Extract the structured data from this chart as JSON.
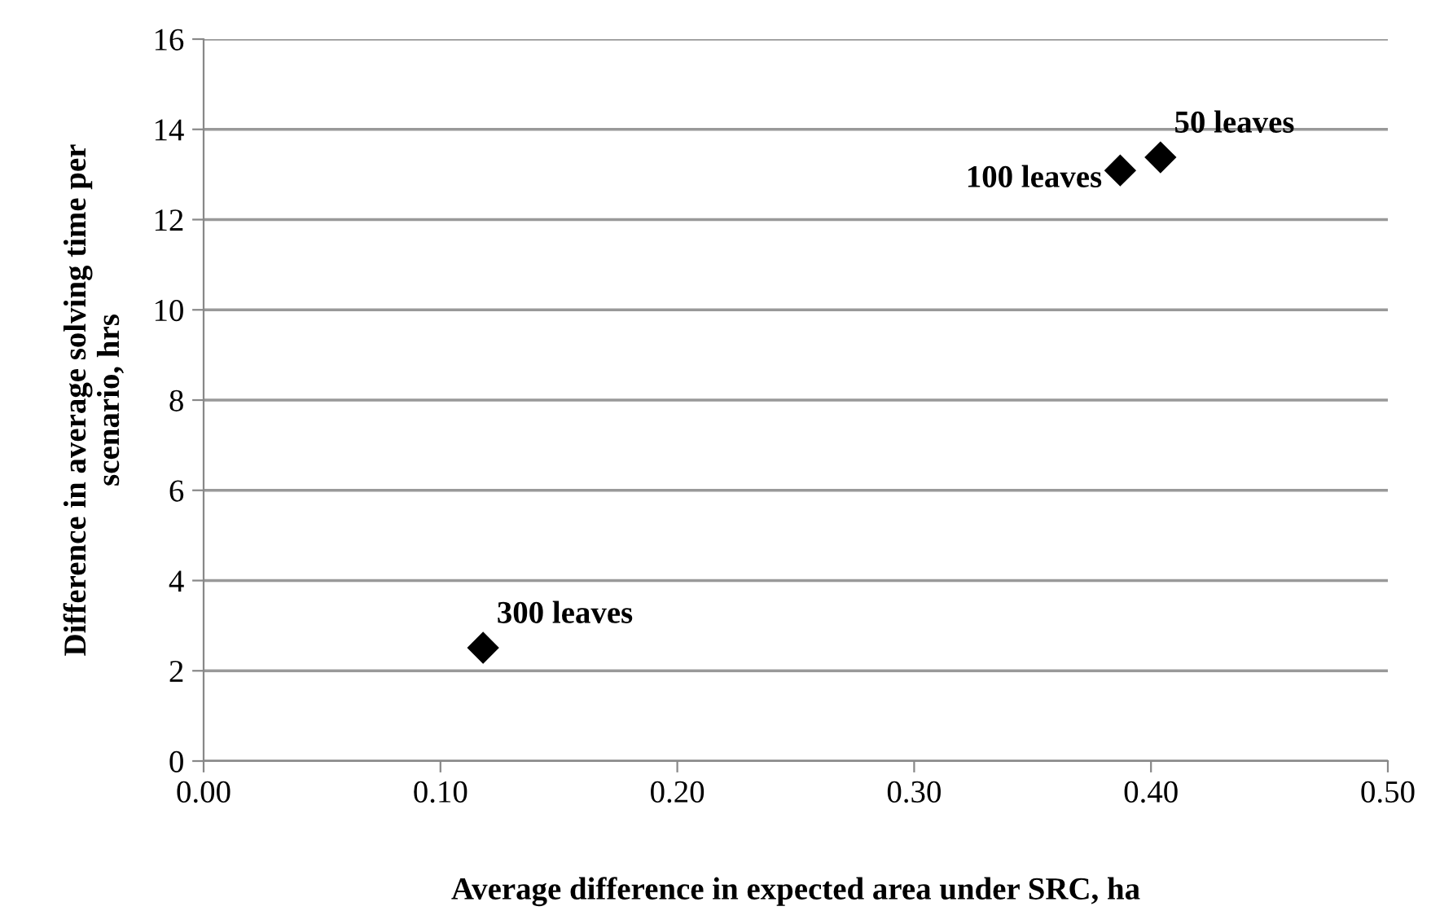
{
  "chart_data": {
    "type": "scatter",
    "xlabel": "Average difference in expected area under SRC, ha",
    "ylabel": "Difference in average solving time per\nscenario, hrs",
    "x": [
      0.404,
      0.387,
      0.118
    ],
    "series": [
      {
        "color": "#000000",
        "values": [
          13.38,
          13.09,
          2.51
        ]
      }
    ],
    "annotations": [
      {
        "text": "50 leaves",
        "x": 0.404,
        "y": 13.38
      },
      {
        "text": "100 leaves",
        "x": 0.387,
        "y": 13.09
      },
      {
        "text": "300 leaves",
        "x": 0.118,
        "y": 2.51
      }
    ],
    "xlim": [
      0,
      0.5
    ],
    "xticks": [
      {
        "value": 0,
        "label": "0.00"
      },
      {
        "value": 0.1,
        "label": "0.10"
      },
      {
        "value": 0.2,
        "label": "0.20"
      },
      {
        "value": 0.3,
        "label": "0.30"
      },
      {
        "value": 0.4,
        "label": "0.40"
      },
      {
        "value": 0.5,
        "label": "0.50"
      }
    ],
    "ylim": [
      0,
      16
    ],
    "yticks": [
      0,
      2,
      4,
      6,
      8,
      10,
      12,
      14,
      16
    ],
    "grid": "y",
    "marker": "diamond",
    "legend": false
  }
}
